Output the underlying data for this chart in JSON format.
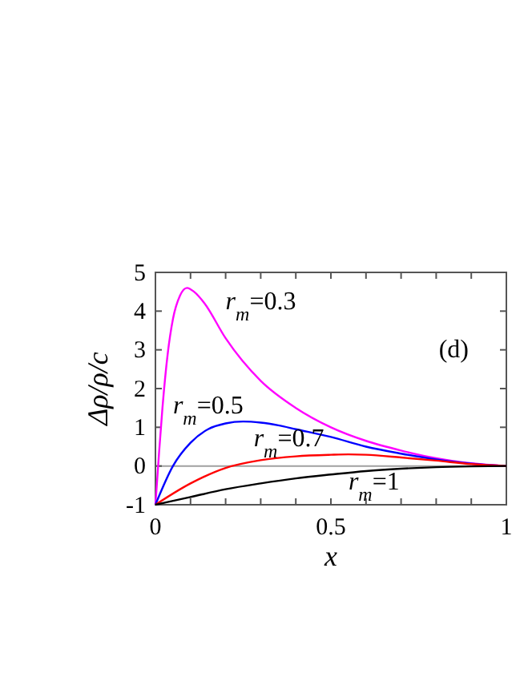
{
  "chart_data": {
    "type": "line",
    "xlabel": "x",
    "ylabel": "Δρ/ρ/c",
    "annotations": [
      "(d)"
    ],
    "xlim": [
      0,
      1
    ],
    "ylim": [
      -1,
      5
    ],
    "xticks": [
      0,
      {
        "value": 0.1,
        "label": null
      },
      {
        "value": 0.2,
        "label": null
      },
      {
        "value": 0.3,
        "label": null
      },
      {
        "value": 0.4,
        "label": null
      },
      0.5,
      {
        "value": 0.6,
        "label": null
      },
      {
        "value": 0.7,
        "label": null
      },
      {
        "value": 0.8,
        "label": null
      },
      {
        "value": 0.9,
        "label": null
      },
      1
    ],
    "yticks": [
      -1,
      0,
      1,
      2,
      3,
      4,
      5
    ],
    "ref_lines": [
      {
        "axis": "y",
        "value": 0,
        "color": "#a0a0a0"
      }
    ],
    "series": [
      {
        "name": "r$_{m}$=0.3",
        "color": "#ff00ff",
        "x": [
          0,
          0.01,
          0.02,
          0.035,
          0.05,
          0.07,
          0.09,
          0.11,
          0.14,
          0.2,
          0.3,
          0.4,
          0.5,
          0.6,
          0.7,
          0.8,
          0.9,
          1
        ],
        "values": [
          -1,
          0.3,
          1.5,
          2.9,
          3.8,
          4.4,
          4.6,
          4.5,
          4.2,
          3.3,
          2.2,
          1.5,
          1.0,
          0.65,
          0.4,
          0.2,
          0.07,
          0
        ]
      },
      {
        "name": "r$_{m}$=0.5",
        "color": "#0000ff",
        "x": [
          0,
          0.05,
          0.1,
          0.15,
          0.2,
          0.25,
          0.3,
          0.35,
          0.4,
          0.5,
          0.6,
          0.7,
          0.8,
          0.9,
          1
        ],
        "values": [
          -1,
          0,
          0.6,
          0.95,
          1.1,
          1.15,
          1.12,
          1.05,
          0.95,
          0.75,
          0.5,
          0.32,
          0.17,
          0.06,
          0
        ]
      },
      {
        "name": "r$_{m}$=0.7",
        "color": "#ff0000",
        "x": [
          0,
          0.1,
          0.2,
          0.3,
          0.4,
          0.5,
          0.55,
          0.6,
          0.7,
          0.8,
          0.9,
          1
        ],
        "values": [
          -1,
          -0.45,
          -0.05,
          0.15,
          0.25,
          0.29,
          0.3,
          0.29,
          0.22,
          0.14,
          0.05,
          0
        ]
      },
      {
        "name": "r$_{m}$=1",
        "color": "#000000",
        "x": [
          0,
          0.1,
          0.2,
          0.3,
          0.4,
          0.5,
          0.6,
          0.7,
          0.8,
          0.9,
          1
        ],
        "values": [
          -1,
          -0.8,
          -0.6,
          -0.45,
          -0.32,
          -0.22,
          -0.13,
          -0.07,
          -0.03,
          -0.01,
          0
        ]
      }
    ]
  }
}
